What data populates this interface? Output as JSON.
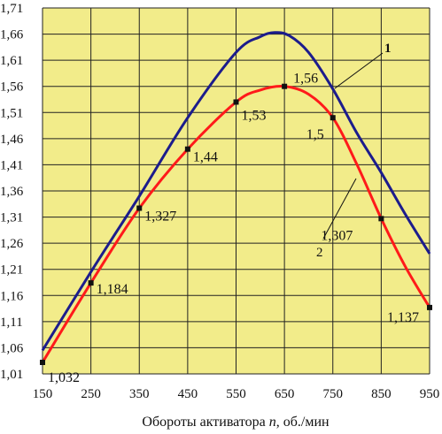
{
  "chart_data": {
    "type": "line",
    "title": "",
    "xlabel": "Обороты активатора n, об./мин",
    "xlabel_parts": {
      "pre": "Обороты активатора ",
      "var": "n",
      "post": ", об./мин"
    },
    "ylabel": "",
    "xlim": [
      150,
      950
    ],
    "ylim": [
      1.01,
      1.71
    ],
    "xticks": [
      "150",
      "250",
      "350",
      "450",
      "550",
      "650",
      "750",
      "850",
      "950"
    ],
    "yticks": [
      "1,01",
      "1,06",
      "1,11",
      "1,16",
      "1,21",
      "1,26",
      "1,31",
      "1,36",
      "1,41",
      "1,46",
      "1,51",
      "1,56",
      "1,61",
      "1,66",
      "1,71"
    ],
    "grid": true,
    "plot_background": "#f2ec8a",
    "series": [
      {
        "name": "1",
        "color": "#1c1c8c",
        "x": [
          150,
          250,
          350,
          450,
          550,
          600,
          630,
          660,
          700,
          750,
          800,
          850,
          900,
          950
        ],
        "y": [
          1.055,
          1.205,
          1.35,
          1.5,
          1.625,
          1.655,
          1.663,
          1.657,
          1.625,
          1.555,
          1.47,
          1.395,
          1.315,
          1.24
        ]
      },
      {
        "name": "2",
        "color": "#ff1a1a",
        "x": [
          150,
          250,
          350,
          450,
          550,
          600,
          650,
          700,
          750,
          800,
          850,
          900,
          950
        ],
        "y": [
          1.032,
          1.184,
          1.327,
          1.44,
          1.53,
          1.553,
          1.56,
          1.545,
          1.5,
          1.41,
          1.307,
          1.215,
          1.137
        ],
        "markers_x": [
          150,
          250,
          350,
          450,
          550,
          650,
          750,
          850,
          950
        ],
        "markers_y": [
          1.032,
          1.184,
          1.327,
          1.44,
          1.53,
          1.56,
          1.5,
          1.307,
          1.137
        ]
      }
    ],
    "data_labels": [
      "1,032",
      "1,184",
      "1,327",
      "1,44",
      "1,53",
      "1,56",
      "1,5",
      "1,307",
      "1,137"
    ],
    "curve_labels": [
      "1",
      "2"
    ]
  }
}
